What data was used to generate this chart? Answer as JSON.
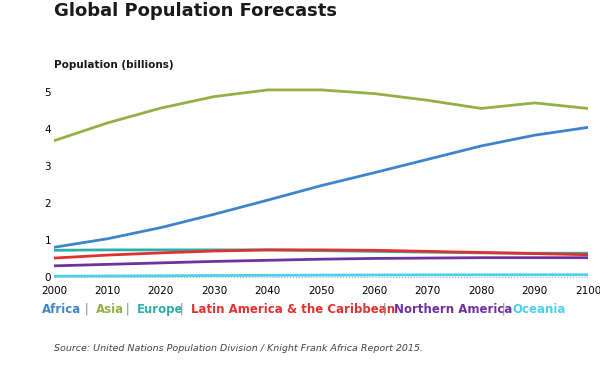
{
  "title": "Global Population Forecasts",
  "ylabel": "Population (billions)",
  "source": "Source: United Nations Population Division / Knight Frank Africa Report 2015.",
  "years": [
    2000,
    2010,
    2020,
    2030,
    2040,
    2050,
    2060,
    2070,
    2080,
    2090,
    2100
  ],
  "series": {
    "Africa": [
      0.81,
      1.04,
      1.34,
      1.7,
      2.08,
      2.47,
      2.82,
      3.18,
      3.54,
      3.83,
      4.04
    ],
    "Asia": [
      3.68,
      4.16,
      4.56,
      4.87,
      5.05,
      5.05,
      4.95,
      4.77,
      4.55,
      4.7,
      4.55
    ],
    "Europe": [
      0.73,
      0.74,
      0.74,
      0.74,
      0.74,
      0.72,
      0.7,
      0.68,
      0.66,
      0.65,
      0.65
    ],
    "Latin America & the Caribbean": [
      0.52,
      0.6,
      0.66,
      0.71,
      0.74,
      0.74,
      0.73,
      0.7,
      0.67,
      0.64,
      0.61
    ],
    "Northern America": [
      0.31,
      0.35,
      0.39,
      0.43,
      0.46,
      0.49,
      0.51,
      0.52,
      0.53,
      0.53,
      0.53
    ],
    "Oceania": [
      0.031,
      0.037,
      0.043,
      0.049,
      0.055,
      0.06,
      0.064,
      0.067,
      0.069,
      0.07,
      0.071
    ]
  },
  "colors": {
    "Africa": "#3d85c8",
    "Asia": "#92b144",
    "Europe": "#2ab0a8",
    "Latin America & the Caribbean": "#e03030",
    "Northern America": "#7030a0",
    "Oceania": "#4dcfee"
  },
  "legend_order": [
    "Africa",
    "Asia",
    "Europe",
    "Latin America & the Caribbean",
    "Northern America",
    "Oceania"
  ],
  "pipe_color": "#888888",
  "ylim": [
    -0.12,
    5.5
  ],
  "yticks": [
    0,
    1,
    2,
    3,
    4,
    5
  ],
  "xlim": [
    2000,
    2100
  ],
  "xticks": [
    2000,
    2010,
    2020,
    2030,
    2040,
    2050,
    2060,
    2070,
    2080,
    2090,
    2100
  ],
  "background_color": "#ffffff",
  "line_width": 2.0,
  "title_fontsize": 13,
  "ylabel_fontsize": 7.5,
  "tick_fontsize": 7.5,
  "legend_fontsize": 8.5,
  "source_fontsize": 6.8
}
